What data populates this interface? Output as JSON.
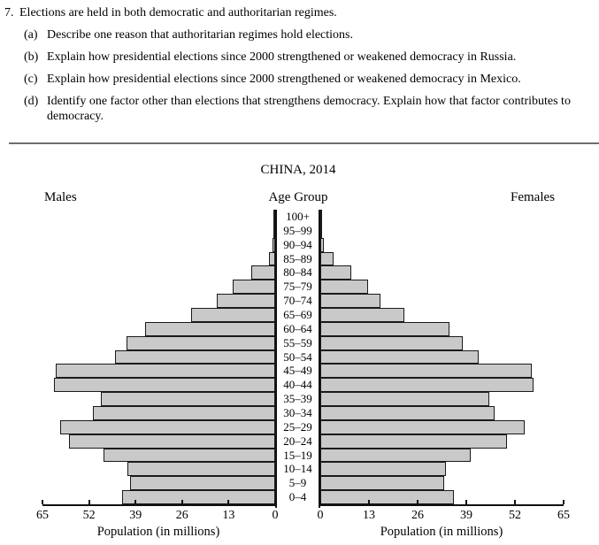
{
  "question": {
    "number": "7.",
    "stem": "Elections are held in both democratic and authoritarian regimes.",
    "parts": [
      {
        "label": "(a)",
        "text": "Describe one reason that authoritarian regimes hold elections."
      },
      {
        "label": "(b)",
        "text": "Explain how presidential elections since 2000 strengthened or weakened democracy in Russia."
      },
      {
        "label": "(c)",
        "text": "Explain how presidential elections since 2000 strengthened or weakened democracy in Mexico."
      },
      {
        "label": "(d)",
        "text": "Identify one factor other than elections that strengthens democracy. Explain how that factor contributes to democracy."
      }
    ]
  },
  "chart": {
    "title": "CHINA, 2014",
    "left_header": "Males",
    "center_header": "Age Group",
    "right_header": "Females",
    "left_axis_caption": "Population (in millions)",
    "right_axis_caption": "Population (in millions)"
  },
  "chart_data": {
    "type": "bar",
    "subtype": "population-pyramid",
    "title": "CHINA, 2014",
    "categories": [
      "100+",
      "95–99",
      "90–94",
      "85–89",
      "80–84",
      "75–79",
      "70–74",
      "65–69",
      "60–64",
      "55–59",
      "50–54",
      "45–49",
      "40–44",
      "35–39",
      "30–34",
      "25–29",
      "20–24",
      "15–19",
      "10–14",
      "5–9",
      "0–4"
    ],
    "series": [
      {
        "name": "Males",
        "values": [
          0.1,
          0.3,
          0.7,
          1.8,
          6.6,
          11.8,
          16.3,
          23.5,
          36.3,
          41.5,
          44.8,
          61.3,
          61.8,
          48.8,
          51.0,
          60.0,
          57.5,
          48.0,
          41.2,
          40.5,
          42.8
        ]
      },
      {
        "name": "Females",
        "values": [
          0.1,
          0.4,
          1.0,
          3.6,
          8.2,
          12.8,
          16.1,
          22.5,
          34.4,
          38.0,
          42.2,
          56.5,
          57.0,
          45.1,
          46.6,
          54.5,
          49.8,
          40.1,
          33.6,
          33.2,
          35.6
        ]
      }
    ],
    "xlabel": "Population (in millions)",
    "ylabel": "Age Group",
    "xlim": [
      0,
      65
    ],
    "x_ticks": [
      0,
      13,
      26,
      39,
      52,
      65
    ],
    "grid": false,
    "bar_fill": "#c9c9c9",
    "bar_border": "#1a1a1a"
  }
}
